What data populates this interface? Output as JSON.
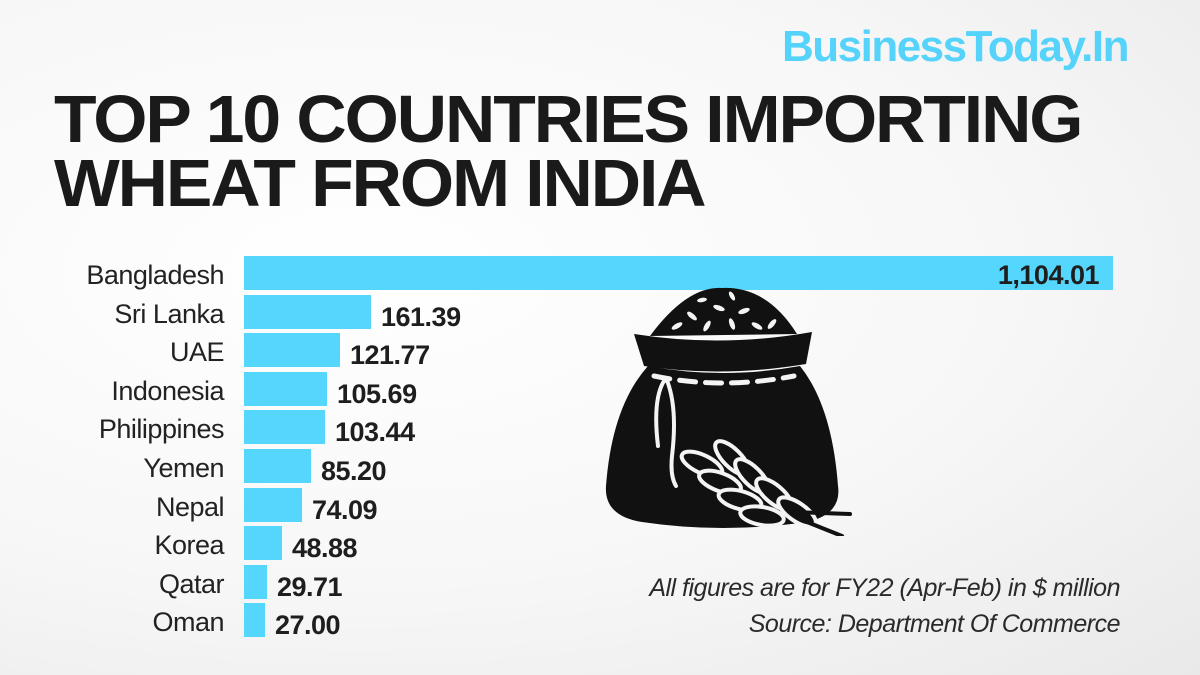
{
  "brand": {
    "name": "BusinessToday.In",
    "color": "#55d3fb"
  },
  "title": {
    "line1": "TOP 10 COUNTRIES IMPORTING",
    "line2": "WHEAT FROM INDIA"
  },
  "chart_data": {
    "type": "bar",
    "orientation": "horizontal",
    "title": "TOP 10 COUNTRIES IMPORTING WHEAT FROM INDIA",
    "xlabel": "",
    "ylabel": "",
    "unit": "$ million",
    "categories": [
      "Bangladesh",
      "Sri Lanka",
      "UAE",
      "Indonesia",
      "Philippines",
      "Yemen",
      "Nepal",
      "Korea",
      "Qatar",
      "Oman"
    ],
    "values": [
      1104.01,
      161.39,
      121.77,
      105.69,
      103.44,
      85.2,
      74.09,
      48.88,
      29.71,
      27.0
    ],
    "value_labels": [
      "1,104.01",
      "161.39",
      "121.77",
      "105.69",
      "103.44",
      "85.20",
      "74.09",
      "48.88",
      "29.71",
      "27.00"
    ],
    "bar_color": "#55d6fc",
    "grid": false,
    "legend": null
  },
  "footnote": {
    "line1": "All figures are for FY22 (Apr-Feb) in $ million",
    "line2": "Source: Department Of Commerce"
  },
  "illustration": {
    "icon": "wheat-sack-icon"
  }
}
